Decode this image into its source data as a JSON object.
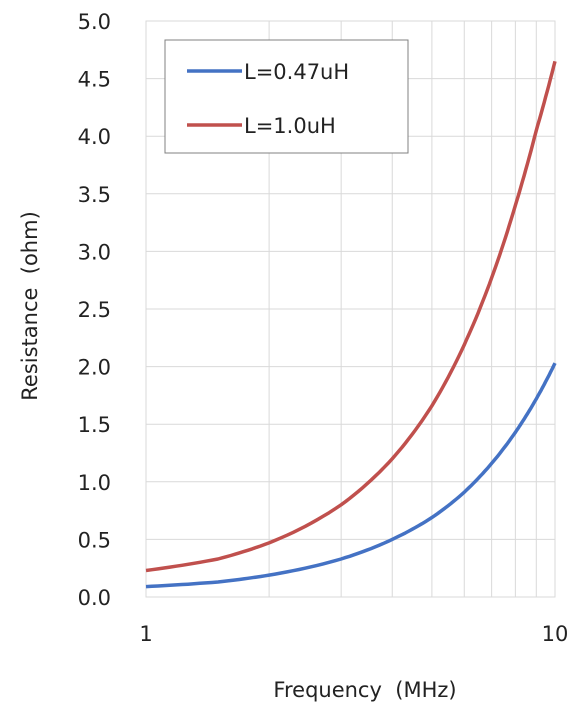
{
  "chart_data": {
    "type": "line",
    "title": "",
    "xlabel": "Frequency  (MHz)",
    "ylabel": "Resistance  (ohm)",
    "x_scale": "log",
    "xlim": [
      1,
      10
    ],
    "ylim": [
      0,
      5
    ],
    "x_ticks": [
      1,
      10
    ],
    "x_tick_labels": [
      "1",
      "10"
    ],
    "y_ticks": [
      0,
      0.5,
      1,
      1.5,
      2,
      2.5,
      3,
      3.5,
      4,
      4.5,
      5
    ],
    "y_tick_labels": [
      "0.0",
      "0.5",
      "1.0",
      "1.5",
      "2.0",
      "2.5",
      "3.0",
      "3.5",
      "4.0",
      "4.5",
      "5.0"
    ],
    "grid": true,
    "legend_position": "top-left",
    "x": [
      1,
      1.5,
      2,
      3,
      4,
      5,
      6,
      7,
      8,
      9,
      10
    ],
    "series": [
      {
        "name": "L=0.47uH",
        "color": "#4472C4",
        "values": [
          0.09,
          0.13,
          0.19,
          0.33,
          0.5,
          0.69,
          0.91,
          1.16,
          1.43,
          1.72,
          2.03
        ]
      },
      {
        "name": "L=1.0uH",
        "color": "#C0504D",
        "values": [
          0.23,
          0.33,
          0.47,
          0.8,
          1.2,
          1.66,
          2.19,
          2.77,
          3.4,
          4.05,
          4.65
        ]
      }
    ]
  }
}
